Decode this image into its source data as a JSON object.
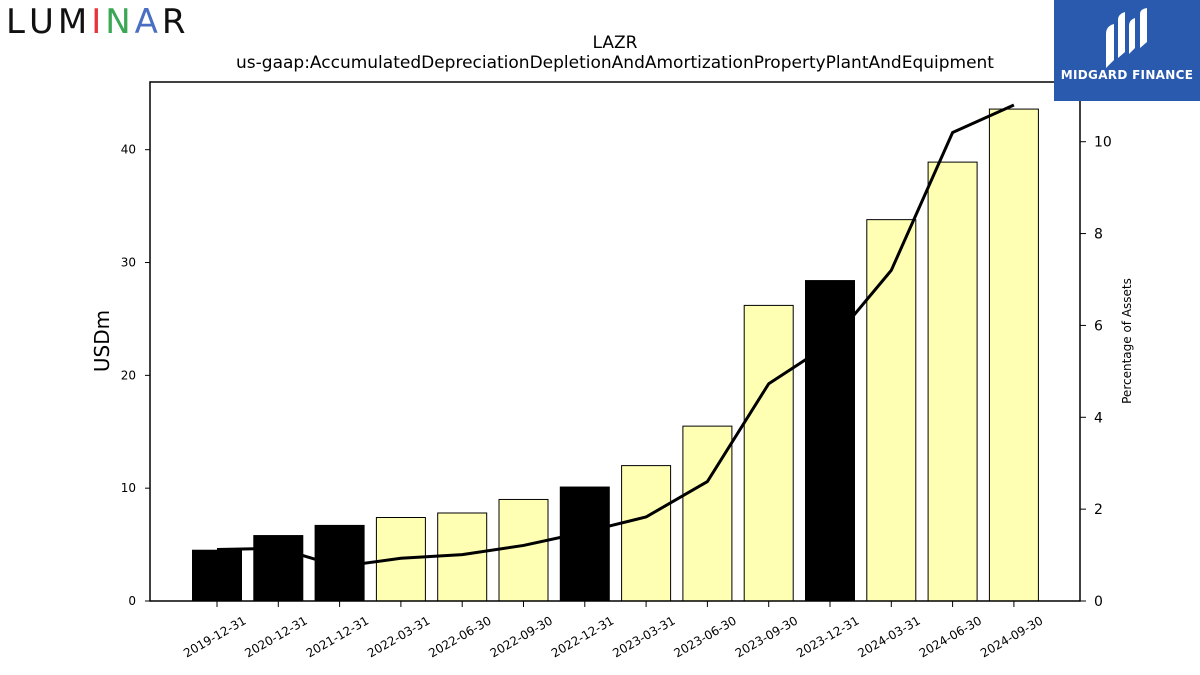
{
  "logos": {
    "left": {
      "text": "LUMINAR",
      "letter_colors": [
        "#111111",
        "#111111",
        "#111111",
        "#e8323c",
        "#3aa755",
        "#4a6fc2",
        "#111111",
        "#111111"
      ]
    },
    "right": {
      "text": "MIDGARD FINANCE",
      "background": "#2a5aad"
    }
  },
  "chart_data": {
    "type": "bar",
    "title": "LAZR",
    "subtitle": "us-gaap:AccumulatedDepreciationDepletionAndAmortizationPropertyPlantAndEquipment",
    "xlabel": "",
    "ylabel": "USDm",
    "y2label": "Percentage of Assets",
    "ylim": [
      0,
      46
    ],
    "y2lim": [
      0,
      11.3
    ],
    "yticks": [
      0,
      10,
      20,
      30,
      40
    ],
    "y2ticks": [
      0,
      2,
      4,
      6,
      8,
      10
    ],
    "grid": false,
    "categories": [
      "2019-12-31",
      "2020-12-31",
      "2021-12-31",
      "2022-03-31",
      "2022-06-30",
      "2022-09-30",
      "2022-12-31",
      "2023-03-31",
      "2023-06-30",
      "2023-09-30",
      "2023-12-31",
      "2024-03-31",
      "2024-06-30",
      "2024-09-30"
    ],
    "series": [
      {
        "kind": "bar",
        "axis": "left",
        "values": [
          4.5,
          5.8,
          6.7,
          7.4,
          7.8,
          9.0,
          10.1,
          12.0,
          15.5,
          26.2,
          28.4,
          33.8,
          38.9,
          43.6
        ],
        "bar_colors": [
          "#000000",
          "#000000",
          "#000000",
          "#ffffb3",
          "#ffffb3",
          "#ffffb3",
          "#000000",
          "#ffffb3",
          "#ffffb3",
          "#ffffb3",
          "#000000",
          "#ffffb3",
          "#ffffb3",
          "#ffffb3"
        ]
      },
      {
        "kind": "line",
        "axis": "right",
        "color": "#000000",
        "values": [
          1.12,
          1.15,
          0.75,
          0.93,
          1.01,
          1.21,
          1.5,
          1.83,
          2.6,
          4.73,
          5.6,
          7.2,
          10.2,
          10.8
        ]
      }
    ]
  }
}
